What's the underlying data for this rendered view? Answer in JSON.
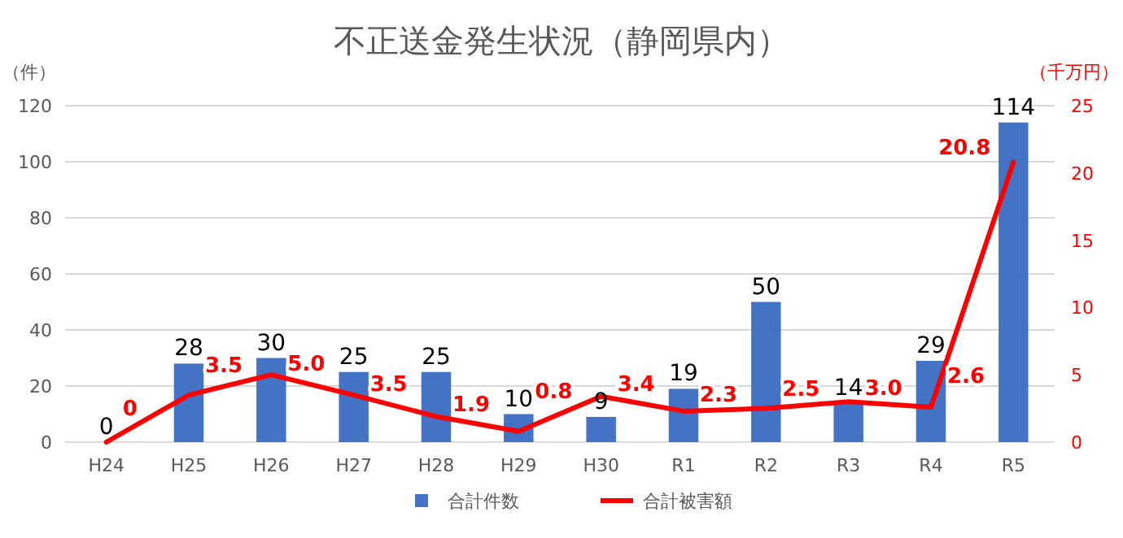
{
  "chart_data": {
    "type": "bar",
    "title": "不正送金発生状況（静岡県内）",
    "ylabel": "（件）",
    "y2label": "（千万円）",
    "categories": [
      "H24",
      "H25",
      "H26",
      "H27",
      "H28",
      "H29",
      "H30",
      "R1",
      "R2",
      "R3",
      "R4",
      "R5"
    ],
    "series": [
      {
        "name": "合計件数",
        "color": "#4472c4",
        "values": [
          0,
          28,
          30,
          25,
          25,
          10,
          9,
          19,
          50,
          14,
          29,
          114
        ],
        "value_labels": [
          "0",
          "28",
          "30",
          "25",
          "25",
          "10",
          "9",
          "19",
          "50",
          "14",
          "29",
          "114"
        ]
      },
      {
        "name": "合計被害額",
        "type": "line",
        "axis": "y2",
        "color": "#ff0000",
        "values": [
          0,
          3.5,
          5.0,
          3.5,
          1.9,
          0.8,
          3.4,
          2.3,
          2.5,
          3.0,
          2.6,
          20.8
        ],
        "value_labels": [
          "0",
          "3.5",
          "5.0",
          "3.5",
          "1.9",
          "0.8",
          "3.4",
          "2.3",
          "2.5",
          "3.0",
          "2.6",
          "20.8"
        ]
      }
    ],
    "ylim": [
      0,
      120
    ],
    "yticks": [
      0,
      20,
      40,
      60,
      80,
      100,
      120
    ],
    "y2lim": [
      0,
      25
    ],
    "y2ticks": [
      0,
      5,
      10,
      15,
      20,
      25
    ],
    "grid": "y",
    "legend": "bottom",
    "marker": "none",
    "line_style": "solid"
  }
}
